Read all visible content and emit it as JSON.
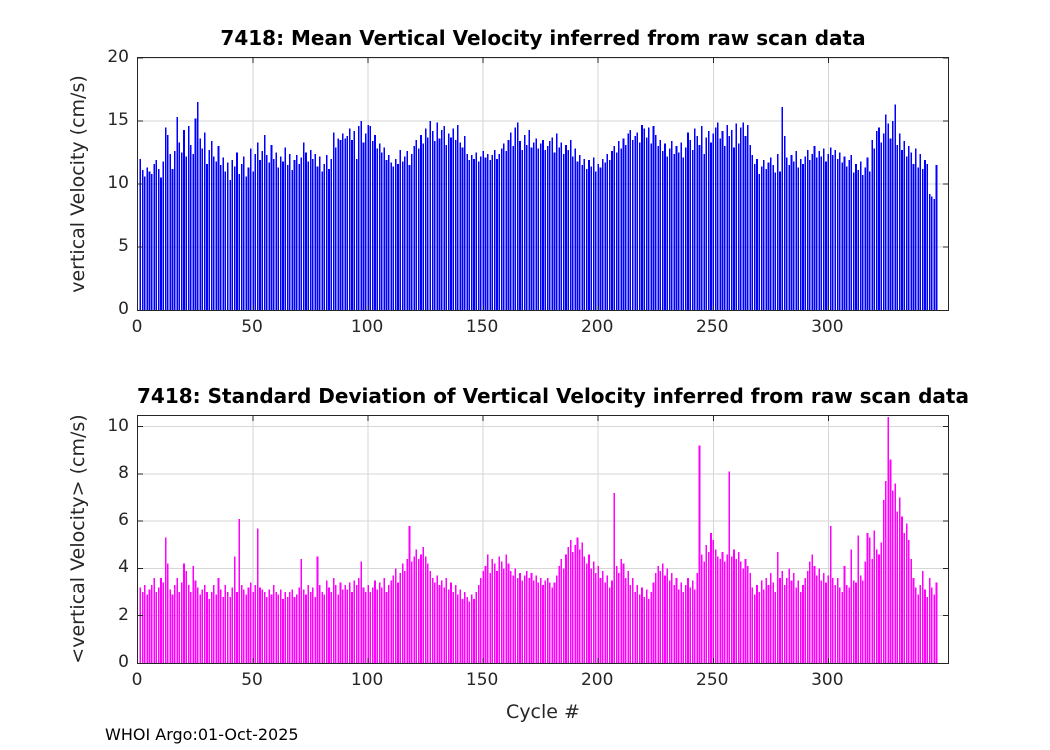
{
  "style": {
    "background": "#ffffff",
    "axis_color": "#262626",
    "grid_color": "#d6d6d6",
    "title_color": "#000000",
    "mean_bar_color": "#0000ff",
    "std_bar_color": "#ff00ff"
  },
  "footer": "WHOI Argo:01-Oct-2025",
  "chart_data": [
    {
      "type": "bar",
      "title": "7418: Mean Vertical Velocity inferred from raw scan data",
      "ylabel": "vertical Velocity (cm/s)",
      "xlabel": "",
      "bar_color": "#0000ff",
      "grid": true,
      "legend": "none",
      "xlim": [
        0,
        352
      ],
      "ylim": [
        0,
        20
      ],
      "xticks": [
        0,
        50,
        100,
        150,
        200,
        250,
        300
      ],
      "yticks": [
        0,
        5,
        10,
        15,
        20
      ],
      "x_start_cycle": 1,
      "values": [
        12.0,
        11.1,
        10.6,
        11.3,
        11.0,
        10.8,
        11.6,
        11.9,
        11.2,
        10.5,
        11.8,
        14.5,
        13.9,
        12.4,
        11.2,
        12.6,
        15.3,
        13.3,
        12.5,
        14.3,
        12.2,
        14.6,
        13.1,
        12.4,
        15.2,
        16.5,
        13.6,
        12.8,
        14.1,
        11.6,
        12.7,
        13.4,
        12.2,
        11.8,
        13.0,
        11.5,
        12.1,
        11.0,
        11.7,
        10.3,
        11.9,
        11.4,
        12.5,
        10.8,
        11.6,
        12.2,
        10.6,
        11.3,
        12.8,
        11.0,
        12.4,
        13.3,
        11.9,
        12.6,
        13.9,
        12.3,
        11.7,
        13.1,
        12.0,
        12.5,
        11.3,
        12.2,
        11.8,
        12.9,
        11.5,
        12.4,
        11.1,
        11.9,
        12.3,
        11.6,
        12.1,
        13.3,
        12.5,
        11.8,
        12.7,
        12.0,
        12.4,
        11.4,
        12.2,
        11.0,
        11.6,
        12.3,
        11.2,
        12.0,
        14.1,
        12.9,
        13.6,
        13.5,
        14.0,
        13.6,
        13.8,
        14.4,
        13.5,
        14.2,
        12.0,
        14.6,
        15.0,
        13.3,
        14.0,
        14.7,
        14.6,
        13.4,
        13.9,
        12.8,
        13.2,
        12.5,
        12.9,
        11.9,
        12.3,
        11.7,
        11.4,
        12.0,
        11.6,
        12.7,
        11.8,
        12.2,
        12.6,
        11.5,
        12.4,
        13.0,
        13.5,
        12.8,
        13.9,
        13.2,
        14.4,
        13.7,
        15.0,
        14.2,
        13.4,
        14.9,
        13.6,
        14.3,
        14.6,
        13.1,
        14.0,
        13.7,
        14.4,
        13.5,
        14.7,
        13.3,
        12.9,
        13.8,
        12.4,
        11.9,
        12.3,
        12.0,
        12.5,
        11.8,
        12.2,
        12.6,
        12.1,
        12.4,
        11.9,
        12.3,
        12.7,
        12.0,
        12.4,
        12.8,
        13.2,
        12.6,
        13.5,
        14.1,
        13.0,
        14.5,
        14.9,
        13.4,
        12.7,
        13.9,
        13.1,
        14.3,
        12.9,
        13.3,
        13.6,
        12.8,
        13.2,
        13.5,
        12.7,
        13.0,
        13.4,
        13.7,
        12.5,
        14.0,
        12.9,
        13.3,
        12.4,
        13.1,
        12.7,
        13.5,
        12.2,
        12.8,
        11.8,
        12.3,
        11.5,
        12.0,
        11.2,
        11.9,
        11.4,
        12.1,
        11.0,
        11.6,
        11.3,
        12.0,
        11.7,
        12.4,
        11.9,
        12.6,
        13.0,
        12.5,
        13.4,
        12.8,
        13.6,
        13.1,
        14.0,
        14.3,
        13.5,
        13.8,
        14.1,
        13.3,
        14.7,
        14.4,
        13.7,
        14.5,
        13.2,
        14.6,
        13.9,
        13.0,
        13.5,
        12.6,
        13.2,
        12.2,
        12.8,
        13.4,
        12.4,
        13.0,
        12.5,
        13.3,
        12.1,
        12.9,
        14.1,
        13.5,
        12.7,
        14.4,
        13.8,
        13.1,
        14.6,
        12.4,
        13.7,
        14.2,
        13.3,
        14.0,
        14.5,
        14.9,
        13.6,
        14.2,
        13.0,
        14.7,
        13.8,
        14.3,
        12.9,
        14.8,
        13.2,
        14.5,
        14.9,
        13.8,
        14.7,
        13.1,
        12.3,
        11.6,
        12.0,
        10.8,
        11.4,
        11.9,
        11.2,
        11.7,
        12.1,
        11.5,
        10.9,
        12.4,
        11.0,
        16.1,
        13.8,
        12.1,
        11.5,
        12.3,
        11.8,
        12.6,
        11.3,
        12.0,
        11.6,
        12.2,
        12.7,
        11.9,
        12.4,
        13.0,
        12.1,
        12.6,
        12.2,
        12.8,
        11.8,
        12.4,
        12.9,
        12.3,
        12.7,
        12.0,
        12.5,
        11.7,
        12.2,
        11.4,
        11.9,
        12.3,
        10.9,
        11.6,
        11.1,
        11.8,
        10.7,
        11.3,
        12.1,
        11.0,
        13.5,
        12.8,
        14.2,
        14.5,
        13.3,
        14.0,
        15.5,
        14.8,
        13.6,
        15.0,
        16.3,
        13.1,
        14.0,
        12.7,
        13.4,
        12.2,
        13.0,
        12.5,
        11.6,
        12.8,
        11.3,
        12.4,
        11.2,
        11.9,
        11.6,
        9.2,
        9.0,
        8.8,
        11.5
      ]
    },
    {
      "type": "bar",
      "title": "7418: Standard Deviation of Vertical Velocity inferred from raw scan data",
      "ylabel": "<vertical Velocity> (cm/s)",
      "xlabel": "Cycle #",
      "bar_color": "#ff00ff",
      "grid": true,
      "legend": "none",
      "xlim": [
        0,
        352
      ],
      "ylim": [
        0,
        10.45
      ],
      "xticks": [
        0,
        50,
        100,
        150,
        200,
        250,
        300
      ],
      "yticks": [
        0,
        2,
        4,
        6,
        8,
        10
      ],
      "x_start_cycle": 1,
      "values": [
        3.2,
        3.0,
        3.3,
        2.9,
        3.1,
        3.3,
        3.6,
        3.0,
        3.2,
        3.6,
        3.4,
        5.3,
        4.2,
        3.1,
        2.9,
        3.3,
        3.6,
        3.0,
        3.4,
        4.2,
        3.9,
        3.3,
        3.0,
        4.1,
        3.5,
        3.2,
        2.9,
        3.1,
        3.3,
        3.0,
        2.7,
        3.0,
        3.3,
        2.9,
        3.6,
        3.1,
        2.8,
        3.3,
        3.0,
        2.8,
        3.2,
        4.5,
        3.0,
        6.1,
        3.3,
        3.1,
        2.9,
        3.2,
        3.4,
        3.0,
        3.3,
        5.7,
        3.2,
        3.1,
        3.0,
        2.8,
        3.1,
        2.9,
        3.3,
        3.0,
        2.9,
        3.1,
        2.7,
        3.0,
        2.8,
        3.0,
        3.1,
        2.8,
        2.9,
        3.2,
        4.4,
        3.1,
        2.9,
        3.3,
        3.0,
        3.2,
        2.8,
        4.5,
        3.3,
        3.0,
        2.9,
        3.5,
        3.2,
        3.0,
        3.6,
        3.3,
        2.9,
        3.4,
        3.1,
        3.3,
        3.1,
        3.4,
        3.0,
        3.5,
        3.3,
        3.6,
        4.3,
        3.2,
        3.0,
        3.3,
        3.0,
        3.2,
        3.5,
        3.1,
        3.4,
        3.2,
        3.6,
        3.0,
        3.3,
        3.5,
        3.7,
        4.0,
        3.4,
        3.8,
        4.2,
        3.9,
        4.4,
        5.8,
        4.3,
        4.5,
        4.8,
        4.4,
        4.6,
        4.9,
        4.5,
        4.2,
        3.9,
        3.6,
        3.4,
        3.7,
        3.3,
        3.5,
        3.2,
        3.6,
        3.1,
        3.4,
        3.0,
        3.3,
        2.9,
        3.1,
        2.7,
        3.0,
        2.8,
        2.6,
        2.9,
        2.7,
        3.0,
        3.3,
        3.6,
        3.9,
        4.1,
        4.6,
        3.8,
        4.4,
        4.2,
        3.9,
        4.5,
        4.3,
        4.0,
        4.6,
        4.2,
        3.9,
        3.7,
        4.0,
        3.6,
        3.8,
        3.5,
        3.7,
        3.9,
        3.6,
        3.8,
        3.5,
        3.7,
        3.4,
        3.6,
        3.3,
        3.5,
        3.6,
        3.4,
        3.2,
        3.4,
        3.7,
        4.1,
        4.4,
        4.0,
        4.6,
        4.9,
        5.2,
        4.7,
        5.0,
        5.3,
        4.8,
        5.1,
        4.5,
        4.2,
        4.6,
        4.0,
        4.3,
        3.8,
        4.1,
        3.6,
        3.9,
        3.4,
        3.7,
        3.2,
        3.5,
        7.2,
        4.1,
        3.8,
        4.4,
        4.2,
        3.6,
        3.9,
        3.3,
        3.6,
        3.0,
        3.3,
        2.9,
        3.2,
        2.8,
        3.1,
        2.7,
        3.0,
        3.4,
        3.8,
        4.1,
        3.9,
        4.2,
        3.7,
        4.0,
        3.5,
        3.8,
        3.3,
        3.6,
        3.1,
        3.4,
        3.0,
        3.3,
        3.6,
        3.2,
        3.5,
        3.1,
        3.8,
        9.2,
        4.6,
        4.3,
        5.0,
        4.7,
        5.5,
        5.2,
        4.8,
        4.5,
        4.4,
        4.7,
        4.3,
        4.6,
        8.1,
        4.5,
        4.8,
        4.4,
        4.7,
        4.3,
        4.0,
        4.4,
        4.1,
        3.8,
        3.2,
        2.9,
        3.3,
        3.0,
        3.5,
        3.1,
        3.6,
        3.3,
        3.8,
        3.4,
        3.0,
        4.7,
        3.6,
        3.9,
        3.3,
        3.6,
        4.0,
        3.5,
        3.8,
        3.2,
        3.5,
        3.0,
        3.3,
        3.6,
        3.9,
        4.3,
        4.6,
        4.1,
        3.7,
        4.0,
        3.5,
        3.8,
        3.4,
        3.7,
        5.8,
        3.6,
        3.3,
        3.6,
        3.2,
        3.0,
        4.1,
        3.3,
        3.2,
        4.8,
        3.5,
        3.4,
        5.4,
        3.7,
        3.5,
        4.3,
        5.5,
        5.3,
        4.4,
        5.6,
        4.8,
        4.6,
        5.1,
        6.9,
        7.7,
        10.4,
        8.6,
        7.3,
        7.6,
        6.4,
        7.0,
        6.2,
        5.5,
        5.9,
        5.2,
        4.4,
        3.6,
        3.2,
        2.9,
        3.3,
        3.9,
        3.1,
        2.8,
        3.6,
        3.2,
        2.9,
        3.4
      ]
    }
  ]
}
